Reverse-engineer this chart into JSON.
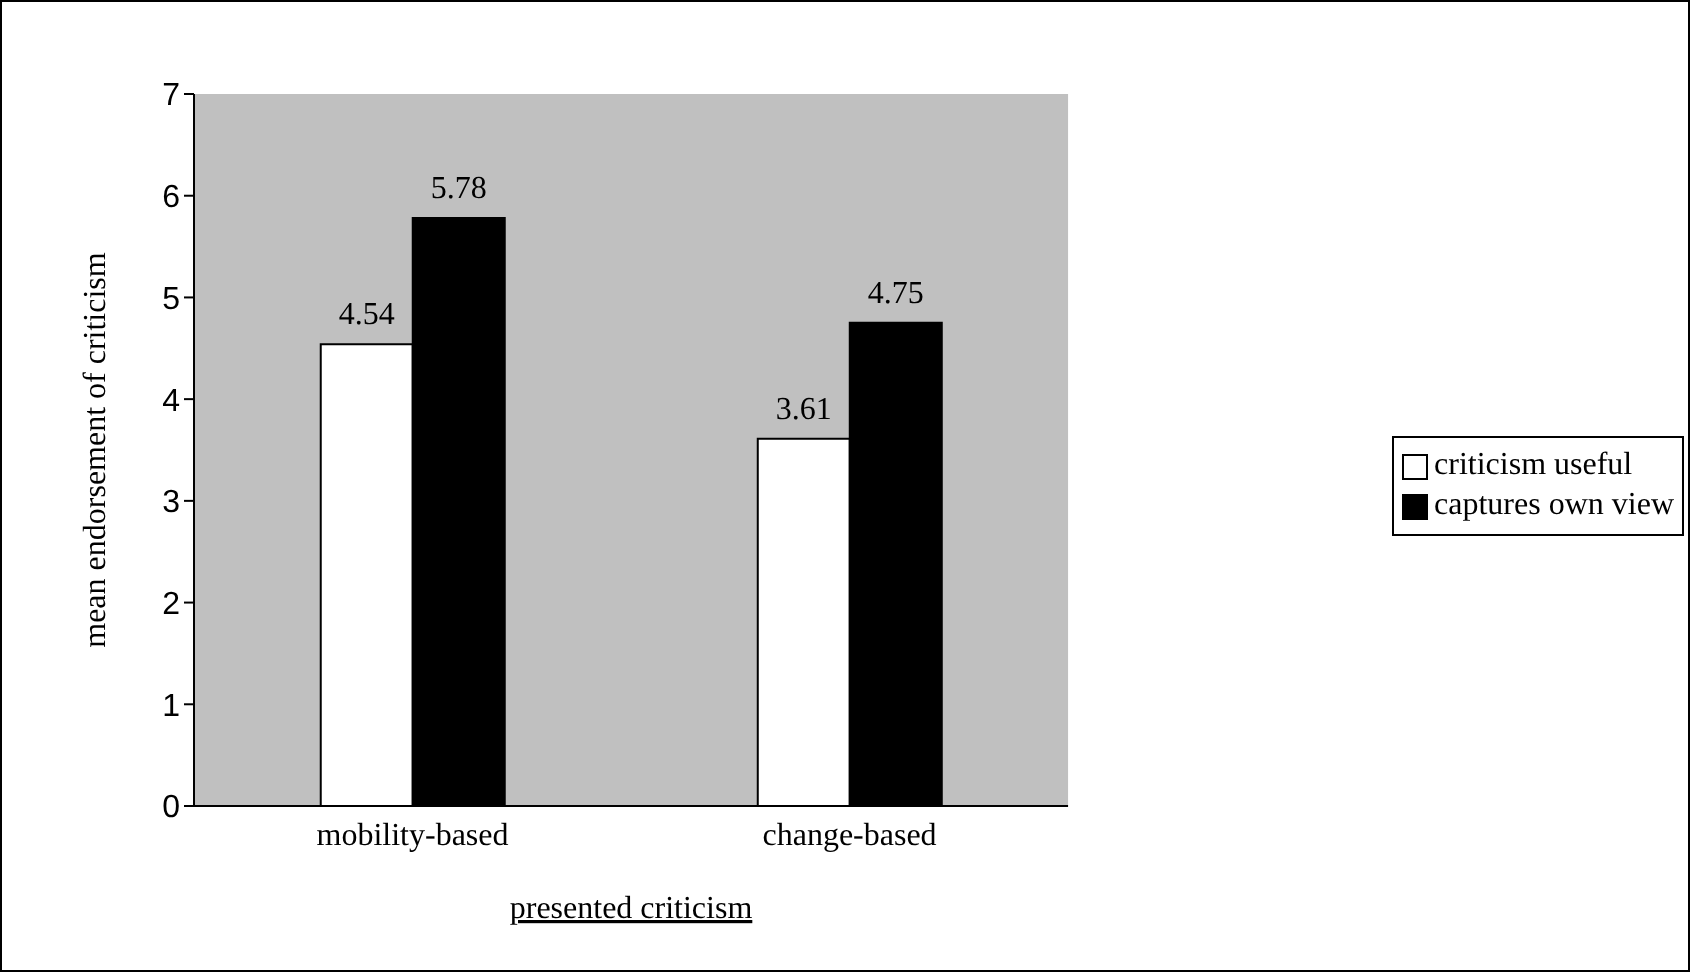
{
  "chart_data": {
    "type": "bar",
    "xlabel": "presented criticism",
    "ylabel": "mean endorsement of criticism",
    "categories": [
      "mobility-based",
      "change-based"
    ],
    "series": [
      {
        "name": "criticism useful",
        "color": "#ffffff",
        "values": [
          4.54,
          3.61
        ]
      },
      {
        "name": "captures own view",
        "color": "#000000",
        "values": [
          5.78,
          4.75
        ]
      }
    ],
    "ylim": [
      0,
      7
    ],
    "yticks": [
      0,
      1,
      2,
      3,
      4,
      5,
      6,
      7
    ],
    "grid": false,
    "legend": "right",
    "data_labels": true
  }
}
